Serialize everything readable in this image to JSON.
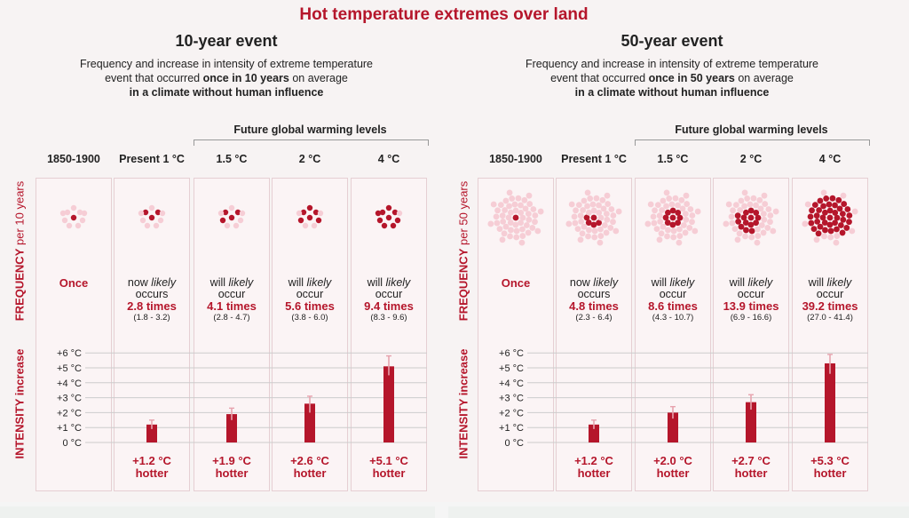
{
  "title": "Hot temperature extremes over land",
  "colors": {
    "accent": "#b5162b",
    "dot_light": "#f6cdd5",
    "bar": "#b5162b",
    "box_bg": "#fbf4f5"
  },
  "future_label": "Future global warming levels",
  "frequency_label": {
    "main": "FREQUENCY",
    "suffix_10": " per 10 years",
    "suffix_50": " per 50 years"
  },
  "intensity_label": "INTENSITY increase",
  "columns": [
    "1850-1900",
    "Present 1 °C",
    "1.5 °C",
    "2 °C",
    "4 °C"
  ],
  "y_ticks": [
    "+6 °C",
    "+5 °C",
    "+4 °C",
    "+3 °C",
    "+2 °C",
    "+1 °C",
    "0 °C"
  ],
  "once_label": "Once",
  "hotter_word": "hotter",
  "chart_data": [
    {
      "type": "bar",
      "event_title": "10-year event",
      "desc_line1": "Frequency and increase in intensity of extreme temperature",
      "desc_line2_pre": "event that occurred ",
      "desc_line2_bold": "once in 10 years",
      "desc_line2_post": " on average",
      "desc_line3": "in a climate without human influence",
      "total_dots": 10,
      "categories": [
        "1850-1900",
        "Present 1 °C",
        "1.5 °C",
        "2 °C",
        "4 °C"
      ],
      "frequency": [
        null,
        {
          "prefix": "now",
          "verb": "occurs",
          "times": "2.8 times",
          "range": "(1.8 - 3.2)",
          "dots": 3
        },
        {
          "prefix": "will",
          "verb": "occur",
          "times": "4.1 times",
          "range": "(2.8 - 4.7)",
          "dots": 4
        },
        {
          "prefix": "will",
          "verb": "occur",
          "times": "5.6 times",
          "range": "(3.8 - 6.0)",
          "dots": 6
        },
        {
          "prefix": "will",
          "verb": "occur",
          "times": "9.4 times",
          "range": "(8.3 - 9.6)",
          "dots": 9
        }
      ],
      "values": [
        0,
        1.2,
        1.9,
        2.6,
        5.1
      ],
      "err_low": [
        0,
        0.9,
        1.5,
        2.0,
        4.5
      ],
      "err_high": [
        0,
        1.5,
        2.3,
        3.1,
        5.8
      ],
      "hotter_labels": [
        "",
        "+1.2 °C",
        "+1.9 °C",
        "+2.6 °C",
        "+5.1 °C"
      ],
      "ylim": [
        0,
        6
      ]
    },
    {
      "type": "bar",
      "event_title": "50-year event",
      "desc_line1": "Frequency and increase in intensity of extreme temperature",
      "desc_line2_pre": "event that occurred ",
      "desc_line2_bold": "once in 50 years",
      "desc_line2_post": " on average",
      "desc_line3": "in a climate without human influence",
      "total_dots": 50,
      "categories": [
        "1850-1900",
        "Present 1 °C",
        "1.5 °C",
        "2 °C",
        "4 °C"
      ],
      "frequency": [
        null,
        {
          "prefix": "now",
          "verb": "occurs",
          "times": "4.8 times",
          "range": "(2.3 - 6.4)",
          "dots": 5
        },
        {
          "prefix": "will",
          "verb": "occur",
          "times": "8.6 times",
          "range": "(4.3 - 10.7)",
          "dots": 9
        },
        {
          "prefix": "will",
          "verb": "occur",
          "times": "13.9 times",
          "range": "(6.9 - 16.6)",
          "dots": 14
        },
        {
          "prefix": "will",
          "verb": "occur",
          "times": "39.2 times",
          "range": "(27.0 - 41.4)",
          "dots": 39
        }
      ],
      "values": [
        0,
        1.2,
        2.0,
        2.7,
        5.3
      ],
      "err_low": [
        0,
        0.9,
        1.6,
        2.2,
        4.6
      ],
      "err_high": [
        0,
        1.5,
        2.4,
        3.2,
        5.9
      ],
      "hotter_labels": [
        "",
        "+1.2 °C",
        "+2.0 °C",
        "+2.7 °C",
        "+5.3 °C"
      ],
      "ylim": [
        0,
        6
      ]
    }
  ]
}
